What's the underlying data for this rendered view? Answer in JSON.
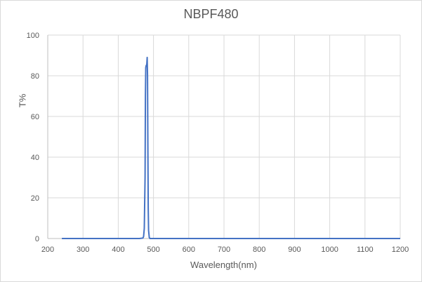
{
  "chart_data": {
    "type": "line",
    "title": "NBPF480",
    "xlabel": "Wavelength(nm)",
    "ylabel": "T%",
    "xlim": [
      200,
      1200
    ],
    "ylim": [
      0,
      100
    ],
    "xticks": [
      200,
      300,
      400,
      500,
      600,
      700,
      800,
      900,
      1000,
      1100,
      1200
    ],
    "yticks": [
      0,
      20,
      40,
      60,
      80,
      100
    ],
    "grid": true,
    "legend": null,
    "series": [
      {
        "name": "NBPF480",
        "color": "#4472c4",
        "x": [
          240,
          300,
          400,
          460,
          470,
          472,
          474,
          476,
          477,
          478,
          479,
          480,
          481,
          482,
          483,
          484,
          485,
          486,
          488,
          490,
          500,
          600,
          700,
          800,
          900,
          1000,
          1100,
          1200
        ],
        "y": [
          0,
          0,
          0,
          0,
          0.2,
          1,
          5,
          30,
          70,
          84,
          85,
          85,
          86,
          89,
          80,
          45,
          15,
          4,
          0.5,
          0,
          0,
          0,
          0,
          0,
          0,
          0,
          0,
          0
        ]
      }
    ]
  }
}
